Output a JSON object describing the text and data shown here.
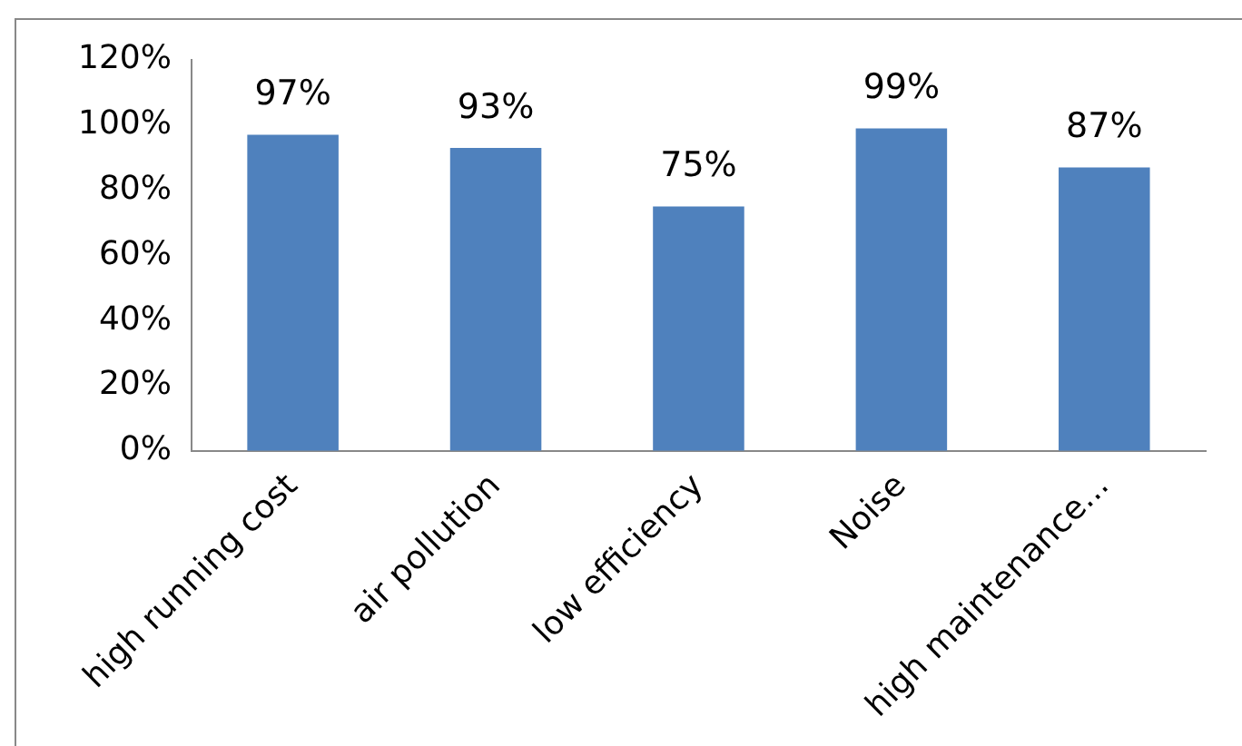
{
  "chart_data": {
    "type": "bar",
    "categories": [
      "high running cost",
      "air pollution",
      "low efficiency",
      "Noise",
      "high maintenance..."
    ],
    "values": [
      97,
      93,
      75,
      99,
      87
    ],
    "color": "#4f81bd",
    "ylim": [
      0,
      120
    ],
    "yticks": [
      {
        "value": 0,
        "label": "0%"
      },
      {
        "value": 20,
        "label": "20%"
      },
      {
        "value": 40,
        "label": "40%"
      },
      {
        "value": 60,
        "label": "60%"
      },
      {
        "value": 80,
        "label": "80%"
      },
      {
        "value": 100,
        "label": "100%"
      },
      {
        "value": 120,
        "label": "120%"
      }
    ],
    "value_labels": [
      "97%",
      "93%",
      "75%",
      "99%",
      "87%"
    ],
    "grid": false,
    "legend": false
  }
}
